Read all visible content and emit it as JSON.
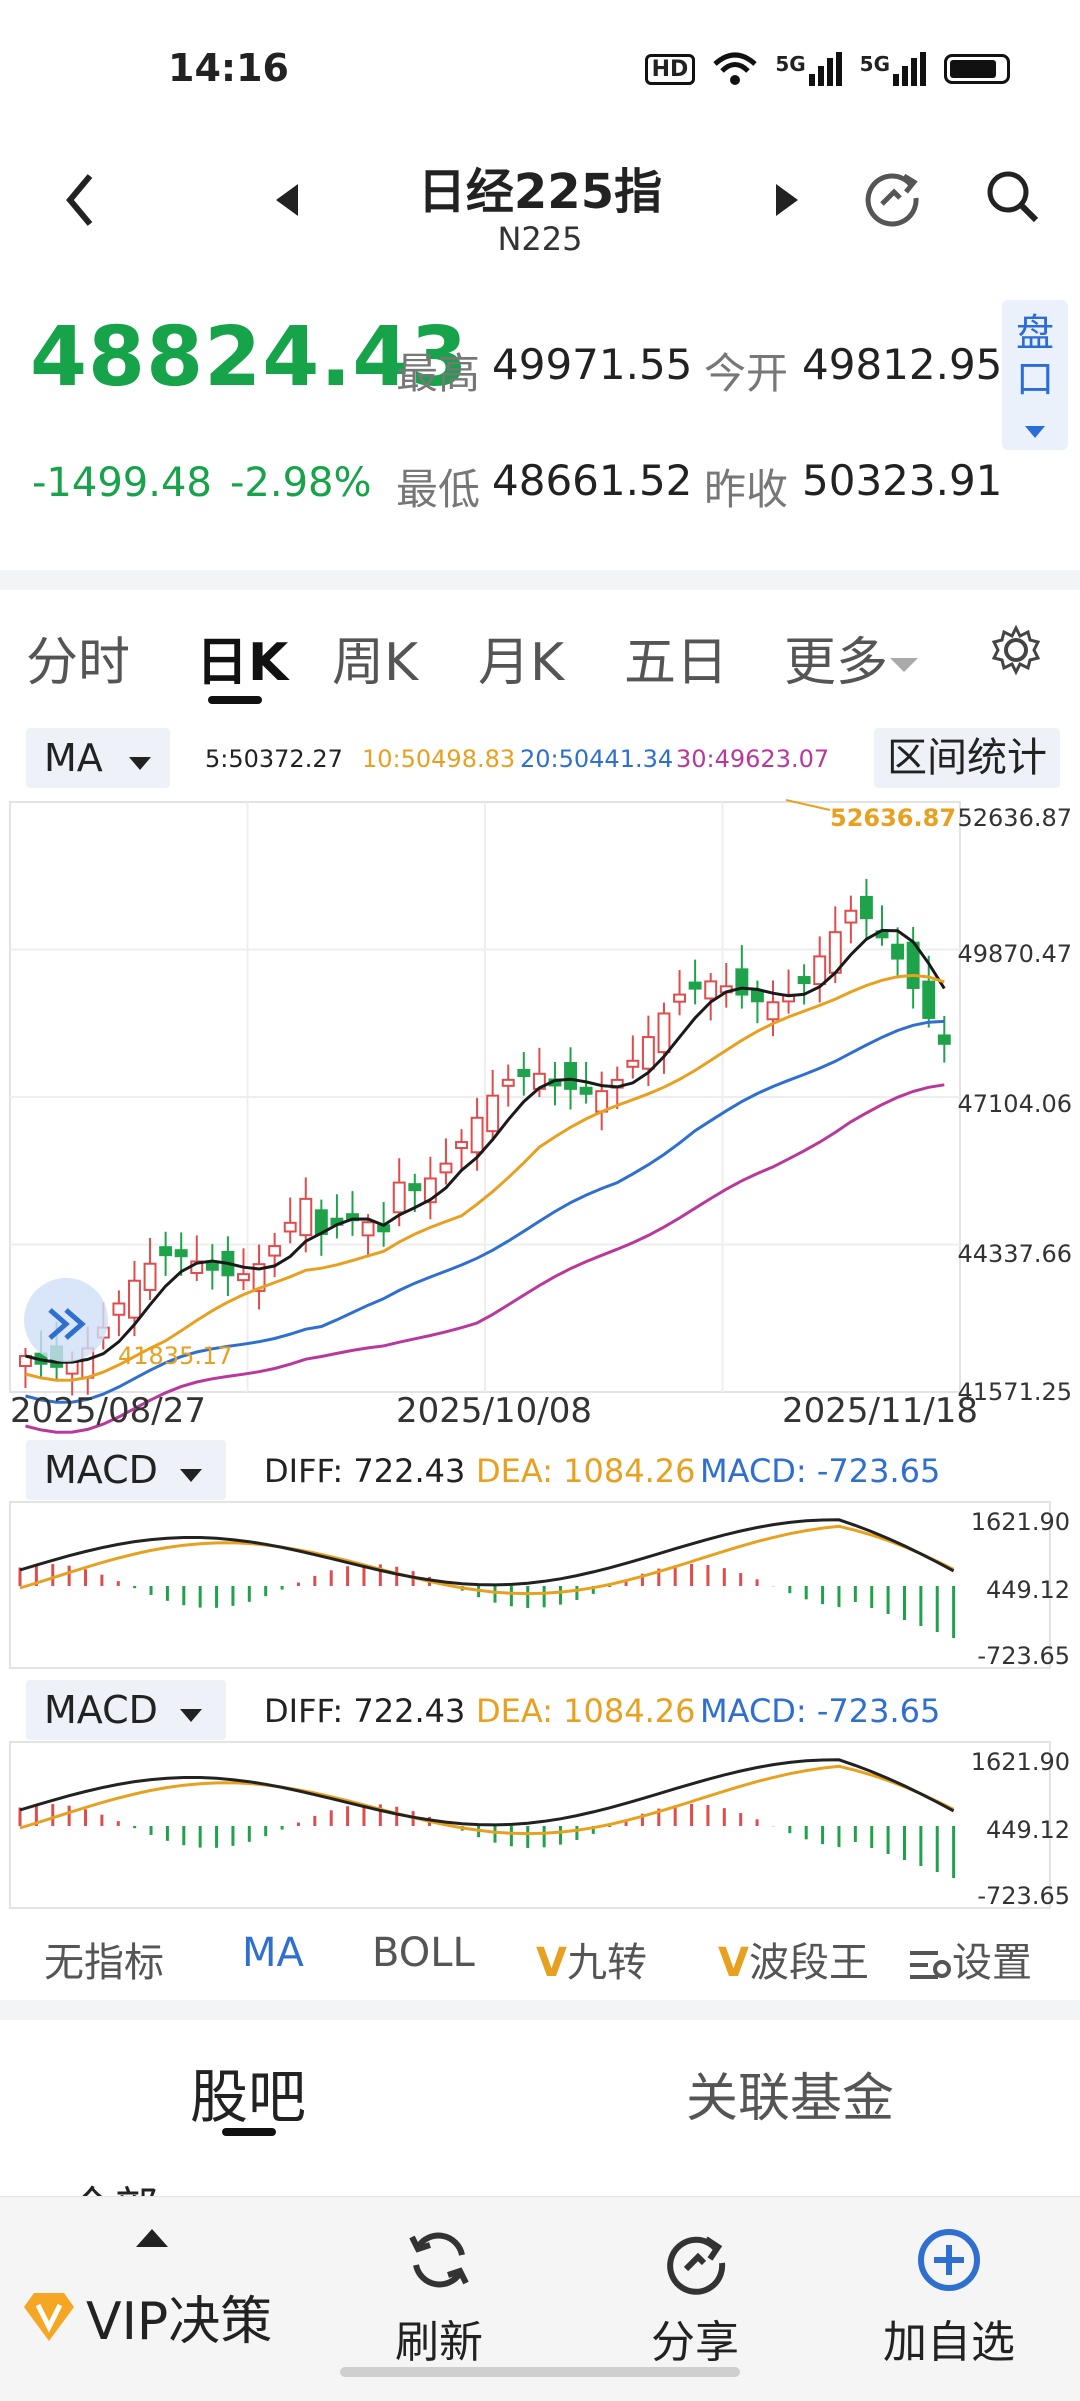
{
  "status": {
    "time": "14:16",
    "hd": "HD",
    "net1": "5G",
    "net2": "5G"
  },
  "header": {
    "title": "日经225指",
    "subtitle": "N225"
  },
  "quote": {
    "price": "48824.43",
    "change": "-1499.48",
    "change_pct": "-2.98%",
    "high_label": "最高",
    "high": "49971.55",
    "open_label": "今开",
    "open": "49812.95",
    "low_label": "最低",
    "low": "48661.52",
    "prev_label": "昨收",
    "prev_close": "50323.91",
    "pankou_1": "盘",
    "pankou_2": "口"
  },
  "tabs": [
    {
      "label": "分时"
    },
    {
      "label": "日K"
    },
    {
      "label": "周K"
    },
    {
      "label": "月K"
    },
    {
      "label": "五日"
    },
    {
      "label": "更多"
    }
  ],
  "ma_legend": {
    "selector": "MA",
    "ma5": "5:50372.27",
    "ma10": "10:50498.83",
    "ma20": "20:50441.34",
    "ma30": "30:49623.07",
    "range_stats": "区间统计"
  },
  "kline": {
    "y_ticks": [
      "52636.87",
      "49870.47",
      "47104.06",
      "44337.66",
      "41571.25"
    ],
    "x_ticks": [
      "2025/08/27",
      "2025/10/08",
      "2025/11/18"
    ],
    "max_label": "52636.87",
    "min_label": "41835.17",
    "colors": {
      "up": "#e04b4b",
      "down": "#1fa34a",
      "ma5": "#1a1a1a",
      "ma10": "#e8a020",
      "ma20": "#2f6fcf",
      "ma30": "#b8399b"
    }
  },
  "macd1": {
    "selector": "MACD",
    "diff": "DIFF: 722.43",
    "dea": "DEA: 1084.26",
    "macd": "MACD: -723.65",
    "ticks": [
      "1621.90",
      "449.12",
      "-723.65"
    ]
  },
  "macd2": {
    "selector": "MACD",
    "diff": "DIFF: 722.43",
    "dea": "DEA: 1084.26",
    "macd": "MACD: -723.65",
    "ticks": [
      "1621.90",
      "449.12",
      "-723.65"
    ]
  },
  "indicators": {
    "none": "无指标",
    "ma": "MA",
    "boll": "BOLL",
    "jiuzhuan": "九转",
    "boduan": "波段王",
    "settings": "设置"
  },
  "board": {
    "tab1": "股吧",
    "tab2": "关联基金",
    "partial": "全部"
  },
  "bottom": {
    "vip": "VIP决策",
    "refresh": "刷新",
    "share": "分享",
    "add": "加自选"
  }
}
